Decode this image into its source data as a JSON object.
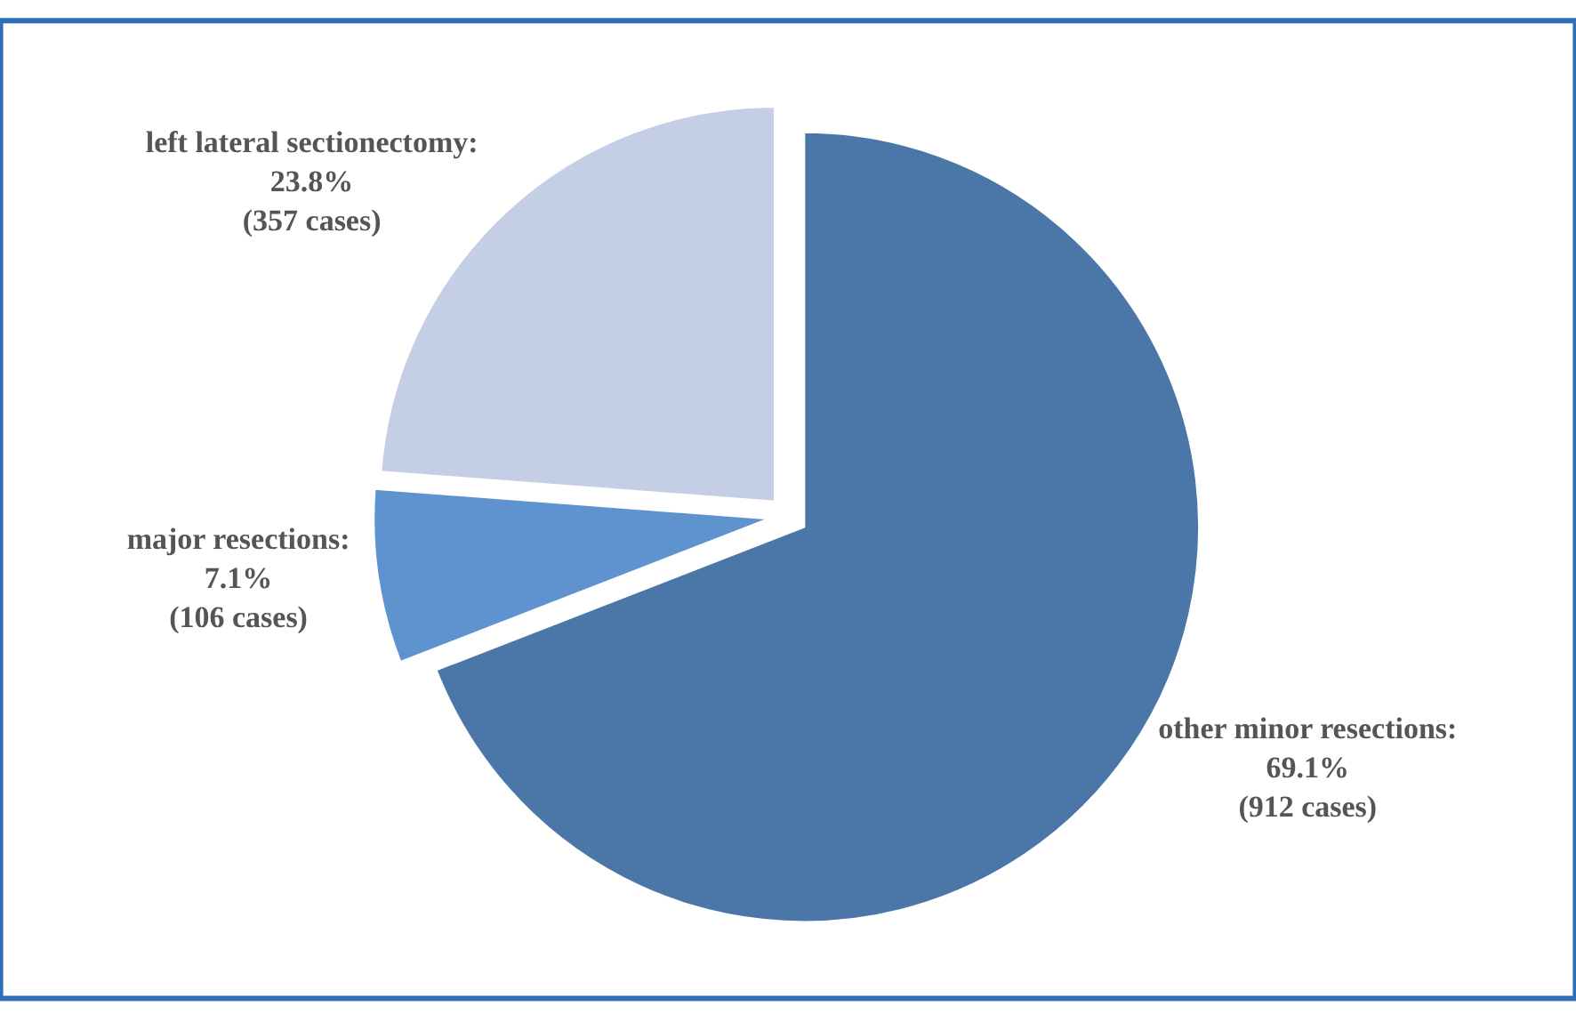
{
  "chart_data": {
    "type": "pie",
    "categories": [
      "other minor resections",
      "major resections",
      "left lateral sectionectomy"
    ],
    "values": [
      69.1,
      7.1,
      23.8
    ],
    "value_labels": [
      ":\n69.1%\n(912 cases)",
      ":\n7.1%\n(106 cases)",
      ":\n23.8%\n(357 cases)"
    ],
    "colors": [
      "#4a77a8",
      "#5f93cf",
      "#c4cfe6"
    ],
    "legend": false
  }
}
